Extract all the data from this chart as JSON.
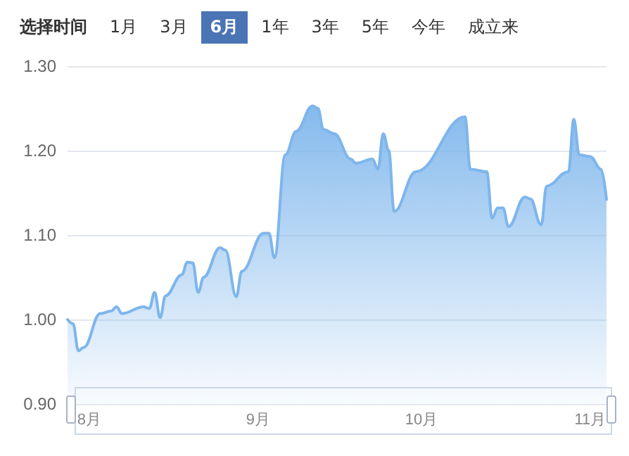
{
  "chart_data": {
    "type": "area",
    "annotations": [
      "选择时间",
      "1月",
      "3月",
      "6月",
      "1年",
      "3年",
      "5年",
      "今年",
      "成立来"
    ],
    "x": [
      "--07-28",
      "--07-29",
      "--07-30",
      "--07-31",
      "--08-03",
      "--08-05",
      "--08-06",
      "--08-07",
      "--08-11",
      "--08-12",
      "--08-13",
      "--08-14",
      "--08-15",
      "--08-18",
      "--08-19",
      "--08-20",
      "--08-21",
      "--08-22",
      "--08-25",
      "--08-26",
      "--08-28",
      "--08-29",
      "--09-02",
      "--09-03",
      "--09-04",
      "--09-06",
      "--09-08",
      "--09-11",
      "--09-12",
      "--09-13",
      "--09-15",
      "--09-18",
      "--09-19",
      "--09-22",
      "--09-23",
      "--09-24",
      "--09-25",
      "--09-26",
      "--09-30",
      "--10-09",
      "--10-10",
      "--10-13",
      "--10-14",
      "--10-15",
      "--10-16",
      "--10-17",
      "--10-20",
      "--10-21",
      "--10-23",
      "--10-24",
      "--10-28",
      "--10-29",
      "--10-30",
      "--11-01",
      "--11-03",
      "--11-04"
    ],
    "series": [
      {
        "color": "#7eb6ec",
        "values": [
          1.0,
          0.995,
          0.963,
          0.967,
          1.007,
          1.01,
          1.015,
          1.007,
          1.015,
          1.013,
          1.032,
          1.002,
          1.028,
          1.053,
          1.068,
          1.067,
          1.032,
          1.05,
          1.085,
          1.082,
          1.027,
          1.057,
          1.102,
          1.102,
          1.073,
          1.195,
          1.223,
          1.253,
          1.25,
          1.225,
          1.22,
          1.19,
          1.185,
          1.19,
          1.178,
          1.22,
          1.2,
          1.128,
          1.175,
          1.24,
          1.178,
          1.175,
          1.12,
          1.132,
          1.132,
          1.11,
          1.145,
          1.143,
          1.112,
          1.158,
          1.175,
          1.237,
          1.195,
          1.193,
          1.178,
          1.142
        ]
      }
    ],
    "xlim": [
      "--07-28",
      "--11-04"
    ],
    "xticks": [
      {
        "value": "--08-01",
        "label": "8月"
      },
      {
        "value": "--09-01",
        "label": "9月"
      },
      {
        "value": "--10-01",
        "label": "10月"
      },
      {
        "value": "--11-01",
        "label": "11月"
      }
    ],
    "ylim": [
      0.9,
      1.3
    ],
    "yticks": [
      {
        "value": 0.9,
        "label": "0.90"
      },
      {
        "value": 1.0,
        "label": "1.00"
      },
      {
        "value": 1.1,
        "label": "1.10"
      },
      {
        "value": 1.2,
        "label": "1.20"
      },
      {
        "value": 1.3,
        "label": "1.30"
      }
    ],
    "grid": "y"
  }
}
